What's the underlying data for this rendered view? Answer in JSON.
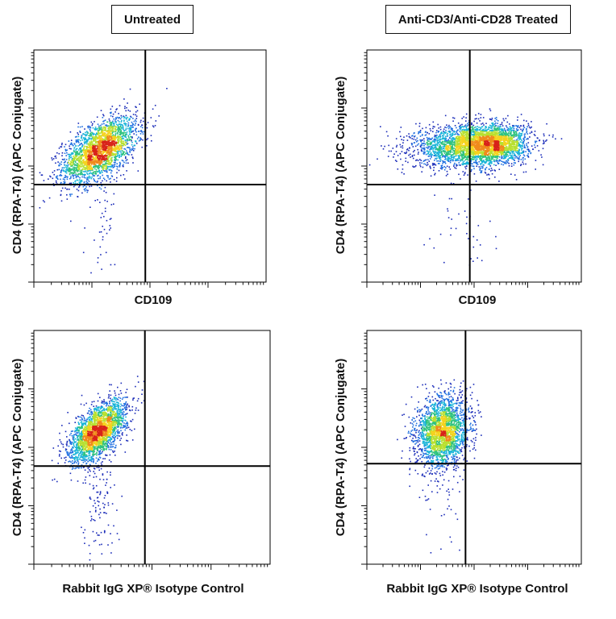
{
  "column_titles": [
    "Untreated",
    "Anti-CD3/Anti-CD28 Treated"
  ],
  "colors": {
    "density_scale": [
      "#1a2bb8",
      "#1f6fe0",
      "#18b4d8",
      "#2ec27e",
      "#b8e030",
      "#f5d21e",
      "#f08a1c",
      "#d8231a"
    ],
    "gate_line": "#000000",
    "frame": "#000000"
  },
  "chart_data": [
    {
      "type": "scatter",
      "variant": "flow-cytometry density dot plot",
      "xlabel": "CD109",
      "ylabel": "CD4 (RPA-T4) (APC Conjugate)",
      "xscale": "log",
      "yscale": "log",
      "xlim": [
        0,
        1
      ],
      "ylim": [
        0,
        1
      ],
      "gate": {
        "x": 0.48,
        "y": 0.42
      },
      "populations": [
        {
          "cx": 0.28,
          "cy": 0.57,
          "sx": 0.08,
          "sy": 0.07,
          "rho": 0.55,
          "n": 2600
        },
        {
          "cx": 0.3,
          "cy": 0.27,
          "sx": 0.04,
          "sy": 0.16,
          "rho": 0.0,
          "n": 55
        }
      ]
    },
    {
      "type": "scatter",
      "variant": "flow-cytometry density dot plot",
      "xlabel": "CD109",
      "ylabel": "CD4 (RPA-T4) (APC Conjugate)",
      "xscale": "log",
      "yscale": "log",
      "xlim": [
        0,
        1
      ],
      "ylim": [
        0,
        1
      ],
      "gate": {
        "x": 0.48,
        "y": 0.42
      },
      "populations": [
        {
          "cx": 0.48,
          "cy": 0.59,
          "sx": 0.13,
          "sy": 0.045,
          "rho": 0.1,
          "n": 2700
        },
        {
          "cx": 0.6,
          "cy": 0.6,
          "sx": 0.07,
          "sy": 0.04,
          "rho": 0.1,
          "n": 1100
        },
        {
          "cx": 0.45,
          "cy": 0.28,
          "sx": 0.07,
          "sy": 0.13,
          "rho": 0.0,
          "n": 45
        }
      ]
    },
    {
      "type": "scatter",
      "variant": "flow-cytometry density dot plot",
      "xlabel": "Rabbit IgG XP® Isotype Control",
      "ylabel": "CD4 (RPA-T4) (APC Conjugate)",
      "xscale": "log",
      "yscale": "log",
      "xlim": [
        0,
        1
      ],
      "ylim": [
        0,
        1
      ],
      "gate": {
        "x": 0.47,
        "y": 0.42
      },
      "populations": [
        {
          "cx": 0.27,
          "cy": 0.57,
          "sx": 0.06,
          "sy": 0.065,
          "rho": 0.6,
          "n": 2500
        },
        {
          "cx": 0.27,
          "cy": 0.26,
          "sx": 0.035,
          "sy": 0.16,
          "rho": 0.0,
          "n": 140
        }
      ]
    },
    {
      "type": "scatter",
      "variant": "flow-cytometry density dot plot",
      "xlabel": "Rabbit IgG XP® Isotype Control",
      "ylabel": "CD4 (RPA-T4) (APC Conjugate)",
      "xscale": "log",
      "yscale": "log",
      "xlim": [
        0,
        1
      ],
      "ylim": [
        0,
        1
      ],
      "gate": {
        "x": 0.46,
        "y": 0.43
      },
      "populations": [
        {
          "cx": 0.35,
          "cy": 0.57,
          "sx": 0.06,
          "sy": 0.075,
          "rho": 0.15,
          "n": 2400
        },
        {
          "cx": 0.35,
          "cy": 0.3,
          "sx": 0.05,
          "sy": 0.12,
          "rho": 0.0,
          "n": 40
        }
      ]
    }
  ]
}
